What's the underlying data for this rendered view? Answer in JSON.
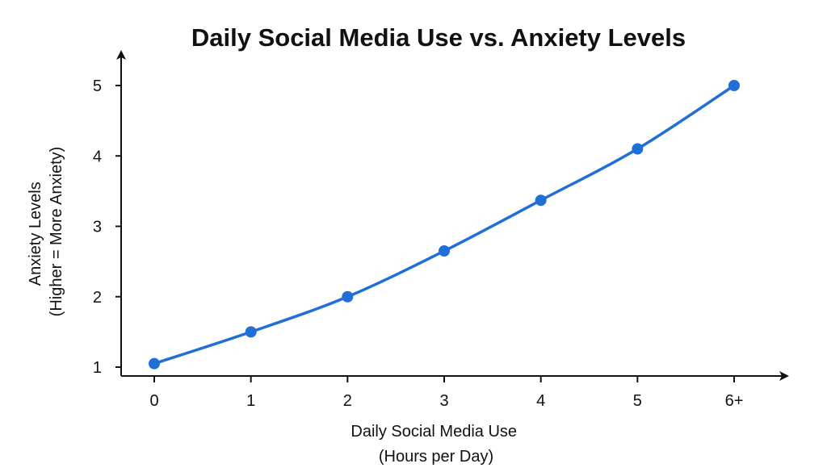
{
  "chart_data": {
    "type": "line",
    "title": "Daily Social Media Use vs. Anxiety Levels",
    "xlabel": [
      "Daily Social Media Use",
      "(Hours per Day)"
    ],
    "ylabel": [
      "Anxiety Levels",
      "(Higher = More Anxiety)"
    ],
    "categories": [
      "0",
      "1",
      "2",
      "3",
      "4",
      "5",
      "6+"
    ],
    "yticks": [
      "1",
      "2",
      "3",
      "4",
      "5"
    ],
    "ylim": [
      1,
      5
    ],
    "grid": false,
    "series": [
      {
        "values": [
          1.05,
          1.5,
          2.0,
          2.65,
          3.37,
          4.1,
          5.0
        ]
      }
    ],
    "colors": {
      "line": "#1f6fd6",
      "axis": "#111111"
    }
  }
}
